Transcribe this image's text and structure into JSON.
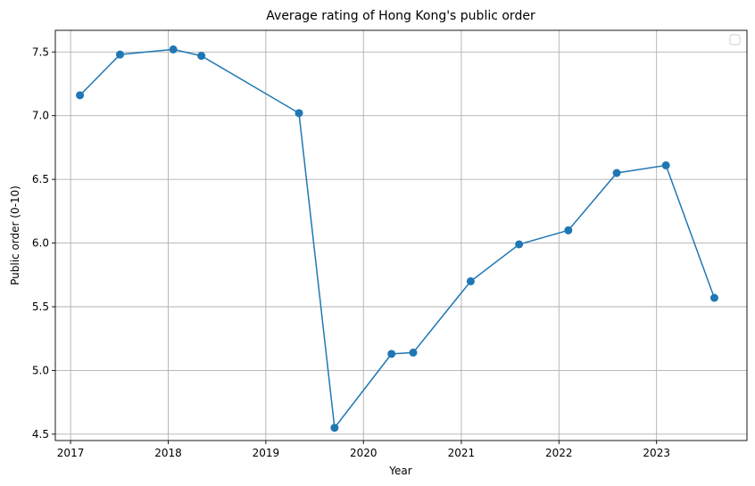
{
  "chart_data": {
    "type": "line",
    "title": "Average rating of Hong Kong's public order",
    "xlabel": "Year",
    "ylabel": "Public order (0-10)",
    "x_ticks": [
      "2017",
      "2018",
      "2019",
      "2020",
      "2021",
      "2022",
      "2023"
    ],
    "y_ticks": [
      "4.5",
      "5.0",
      "5.5",
      "6.0",
      "6.5",
      "7.0",
      "7.5"
    ],
    "xlim": [
      "2016-11-05",
      "2023-12-05"
    ],
    "ylim": [
      4.45,
      7.67
    ],
    "grid": true,
    "legend": "upper right (empty)",
    "series": [
      {
        "color": "#1f77b4",
        "marker": "circle",
        "points": [
          {
            "x": "2017-02-05",
            "y": 7.16
          },
          {
            "x": "2017-07-05",
            "y": 7.48
          },
          {
            "x": "2018-01-20",
            "y": 7.52
          },
          {
            "x": "2018-05-05",
            "y": 7.47
          },
          {
            "x": "2019-05-05",
            "y": 7.02
          },
          {
            "x": "2019-09-15",
            "y": 4.55
          },
          {
            "x": "2020-04-15",
            "y": 5.13
          },
          {
            "x": "2020-07-05",
            "y": 5.14
          },
          {
            "x": "2021-02-05",
            "y": 5.7
          },
          {
            "x": "2021-08-05",
            "y": 5.99
          },
          {
            "x": "2022-02-05",
            "y": 6.1
          },
          {
            "x": "2022-08-05",
            "y": 6.55
          },
          {
            "x": "2023-02-05",
            "y": 6.61
          },
          {
            "x": "2023-08-05",
            "y": 5.57
          }
        ]
      }
    ]
  }
}
